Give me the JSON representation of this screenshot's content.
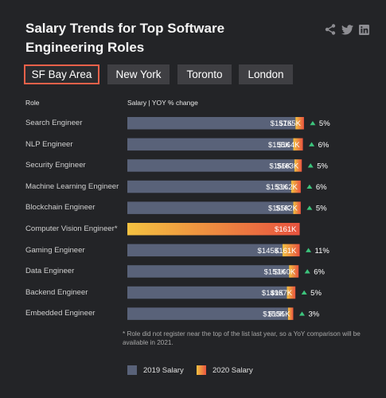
{
  "title": "Salary Trends for Top Software Engineering Roles",
  "social": {
    "icons": [
      "share-icon",
      "twitter-icon",
      "linkedin-icon"
    ]
  },
  "tabs": [
    {
      "label": "SF Bay Area",
      "active": true
    },
    {
      "label": "New York",
      "active": false
    },
    {
      "label": "Toronto",
      "active": false
    },
    {
      "label": "London",
      "active": false
    }
  ],
  "headers": {
    "role": "Role",
    "salary": "Salary | YOY % change"
  },
  "note": "* Role did not register near the top of the list last year, so a YoY comparison will be available in 2021.",
  "colors": {
    "background": "#232427",
    "bar_2019": "#596279",
    "bar_2020_start": "#f4c241",
    "bar_2020_end": "#e8533f",
    "up_arrow": "#3cc47c",
    "active_tab_border": "#e8614a"
  },
  "chart_data": {
    "type": "bar",
    "categories": [
      "Search Engineer",
      "NLP Engineer",
      "Security Engineer",
      "Machine Learning Engineer",
      "Blockchain Engineer",
      "Computer Vision Engineer*",
      "Gaming Engineer",
      "Data Engineer",
      "Backend Engineer",
      "Embedded Engineer"
    ],
    "series": [
      {
        "name": "2019 Salary",
        "values": [
          157,
          155,
          156,
          153,
          155,
          null,
          145,
          151,
          149,
          150
        ],
        "labels": [
          "$157K",
          "$155K",
          "$156K",
          "$153K",
          "$155K",
          "",
          "$145K",
          "$151K",
          "$149K",
          "$150K"
        ]
      },
      {
        "name": "2020 Salary",
        "values": [
          165,
          164,
          163,
          162,
          162,
          161,
          161,
          160,
          157,
          155
        ],
        "labels": [
          "$165K",
          "$164K",
          "$163K",
          "$162K",
          "$162K",
          "$161K",
          "$161K",
          "$160K",
          "$157K",
          "$155K"
        ]
      }
    ],
    "yoy_change": [
      "5%",
      "6%",
      "5%",
      "6%",
      "5%",
      "",
      "11%",
      "6%",
      "5%",
      "3%"
    ],
    "unit": "$K",
    "legend_position": "bottom"
  }
}
